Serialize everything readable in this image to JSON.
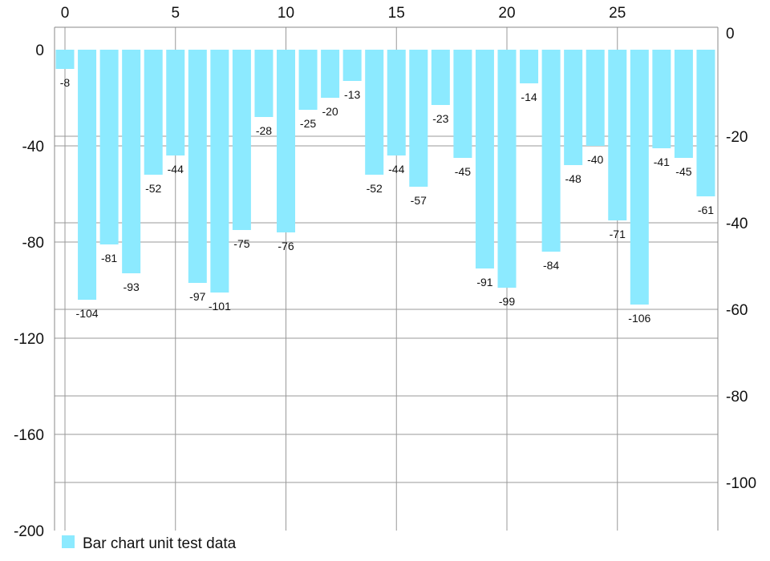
{
  "chart_data": {
    "type": "bar",
    "series": [
      {
        "name": "Bar chart unit test data",
        "color": "#8CEAFF",
        "x": [
          0,
          1,
          2,
          3,
          4,
          5,
          6,
          7,
          8,
          9,
          10,
          11,
          12,
          13,
          14,
          15,
          16,
          17,
          18,
          19,
          20,
          21,
          22,
          23,
          24,
          25,
          26,
          27,
          28,
          29
        ],
        "values": [
          -8,
          -104,
          -81,
          -93,
          -52,
          -44,
          -97,
          -101,
          -75,
          -28,
          -76,
          -25,
          -20,
          -13,
          -52,
          -44,
          -57,
          -23,
          -45,
          -91,
          -99,
          -14,
          -84,
          -48,
          -40,
          -71,
          -106,
          -41,
          -45,
          -61
        ]
      }
    ],
    "x_axis": {
      "position": "top",
      "ticks": [
        "0",
        "5",
        "10",
        "15",
        "20",
        "25"
      ],
      "tick_values": [
        0,
        5,
        10,
        15,
        20,
        25
      ]
    },
    "y_axis_left": {
      "range": [
        -200,
        0
      ],
      "ticks": [
        "0",
        "-40",
        "-80",
        "-120",
        "-160",
        "-200"
      ],
      "tick_values": [
        0,
        -40,
        -80,
        -120,
        -160,
        -200
      ]
    },
    "y_axis_right": {
      "range": [
        -110,
        0
      ],
      "ticks": [
        "0",
        "-20",
        "-40",
        "-60",
        "-80",
        "-100"
      ],
      "tick_values": [
        0,
        -20,
        -40,
        -60,
        -80,
        -100
      ]
    },
    "grid": true,
    "legend": {
      "position": "bottom-left",
      "entries": [
        "Bar chart unit test data"
      ]
    }
  }
}
